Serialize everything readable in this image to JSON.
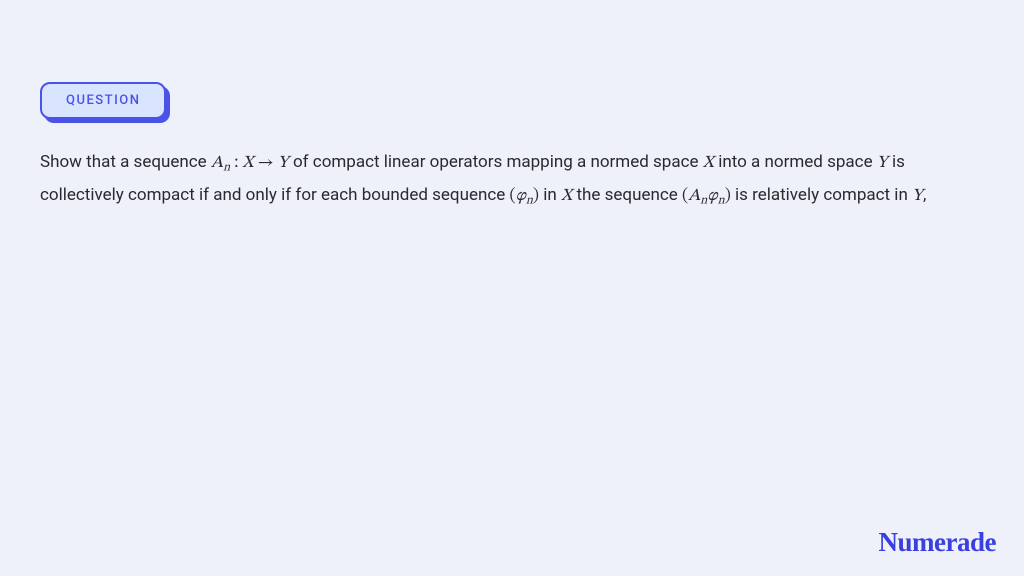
{
  "colors": {
    "page_background": "#eef0fa",
    "badge_background": "#d9e4ff",
    "badge_border": "#4a52e8",
    "badge_shadow": "#4a52e8",
    "badge_text": "#4a52e8",
    "body_text": "#2a2a2e",
    "logo_text": "#3a3fe0"
  },
  "typography": {
    "badge_fontsize": 13,
    "badge_letterspacing": 1.5,
    "body_fontsize": 17,
    "body_lineheight": 1.88,
    "logo_fontsize": 27
  },
  "badge": {
    "label": "QUESTION"
  },
  "question": {
    "part1": "Show that a sequence ",
    "math1_A": "A",
    "math1_sub": "n",
    "math1_colon": " : ",
    "math1_X": "X",
    "math1_arrow": " → ",
    "math1_Y": "Y",
    "part2": " of compact linear operators mapping a normed space ",
    "math2_X": "X",
    "part3": " into a normed space ",
    "math3_Y": "Y",
    "part4": " is collectively compact if and only if for each bounded sequence ",
    "math4_open": "(",
    "math4_phi": "φ",
    "math4_sub": "n",
    "math4_close": ")",
    "part5": " in ",
    "math5_X": "X",
    "part6": " the sequence ",
    "math6_open": "(",
    "math6_A": "A",
    "math6_Asub": "n",
    "math6_phi": "φ",
    "math6_phisub": "n",
    "math6_close": ")",
    "part7": " is relatively compact in ",
    "math7_Y": "Y",
    "part8": ","
  },
  "logo": {
    "text": "Numerade"
  }
}
